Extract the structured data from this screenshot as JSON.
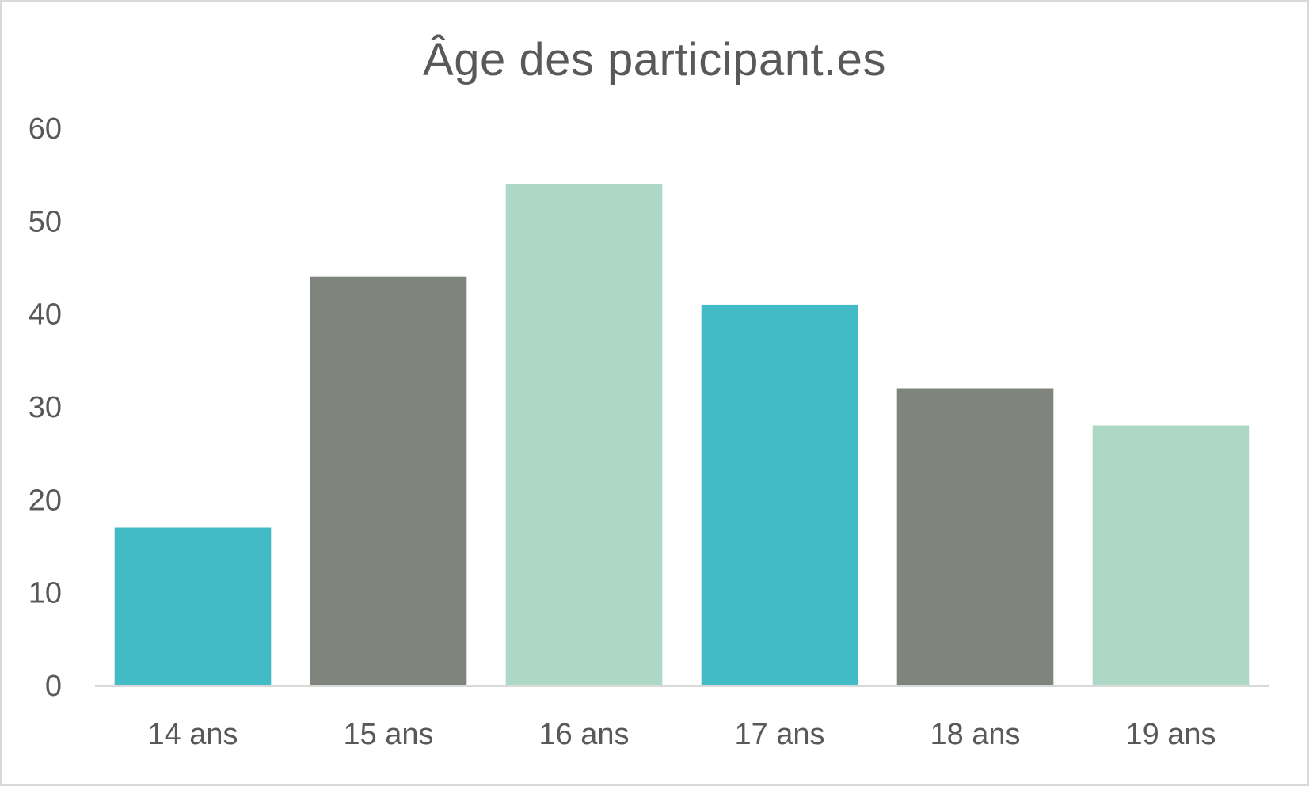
{
  "chart_data": {
    "type": "bar",
    "title": "Âge des participant.es",
    "categories": [
      "14 ans",
      "15 ans",
      "16 ans",
      "17 ans",
      "18 ans",
      "19 ans"
    ],
    "values": [
      17,
      44,
      54,
      41,
      32,
      28
    ],
    "bar_colors": [
      "#43bbc7",
      "#7f857c",
      "#add8c6",
      "#43bbc7",
      "#7f857c",
      "#add8c6"
    ],
    "ylim": [
      0,
      60
    ],
    "yticks": [
      0,
      10,
      20,
      30,
      40,
      50,
      60
    ],
    "grid": false,
    "legend": "none",
    "xlabel": "",
    "ylabel": ""
  }
}
